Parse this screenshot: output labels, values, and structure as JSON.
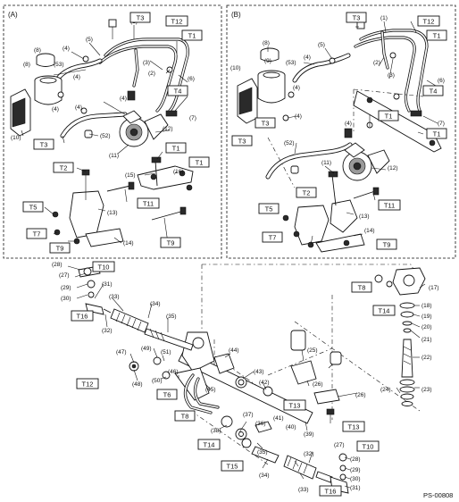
{
  "panels": {
    "a_label": "(A)",
    "b_label": "(B)"
  },
  "figure_code": "PS-00808",
  "callouts": {
    "n1": "(1)",
    "n2": "(2)",
    "n3": "(3)",
    "n4": "(4)",
    "n5": "(5)",
    "n6": "(6)",
    "n7": "(7)",
    "n8": "(8)",
    "n9": "(9)",
    "n10": "(10)",
    "n11": "(11)",
    "n12": "(12)",
    "n13": "(13)",
    "n14": "(14)",
    "n15": "(15)",
    "n16": "(16)",
    "n17": "(17)",
    "n18": "(18)",
    "n19": "(19)",
    "n20": "(20)",
    "n21": "(21)",
    "n22": "(22)",
    "n23": "(23)",
    "n24": "(24)",
    "n25": "(25)",
    "n26": "(26)",
    "n27": "(27)",
    "n28": "(28)",
    "n29": "(29)",
    "n30": "(30)",
    "n31": "(31)",
    "n32": "(32)",
    "n33": "(33)",
    "n34": "(34)",
    "n35": "(35)",
    "n36": "(36)",
    "n37": "(37)",
    "n38": "(38)",
    "n39": "(39)",
    "n40": "(40)",
    "n41": "(41)",
    "n42": "(42)",
    "n43": "(43)",
    "n44": "(44)",
    "n45": "(45)",
    "n46": "(46)",
    "n47": "(47)",
    "n48": "(48)",
    "n49": "(49)",
    "n50": "(50)",
    "n51": "(51)",
    "n52": "(52)",
    "n53": "(53)"
  },
  "torque": {
    "T1": "T1",
    "T2": "T2",
    "T3": "T3",
    "T4": "T4",
    "T5": "T5",
    "T6": "T6",
    "T7": "T7",
    "T8": "T8",
    "T9": "T9",
    "T10": "T10",
    "T11": "T11",
    "T12": "T12",
    "T13": "T13",
    "T14": "T14",
    "T15": "T15",
    "T16": "T16"
  }
}
